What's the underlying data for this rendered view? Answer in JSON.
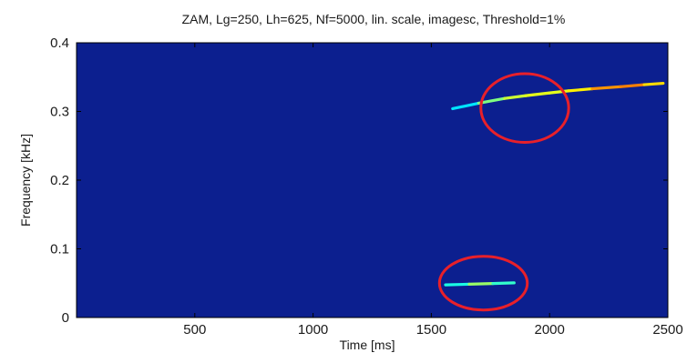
{
  "chart_data": {
    "type": "heatmap",
    "title": "ZAM, Lg=250, Lh=625, Nf=5000, lin. scale, imagesc, Threshold=1%",
    "xlabel": "Time [ms]",
    "ylabel": "Frequency [kHz]",
    "xlim": [
      0,
      2500
    ],
    "ylim": [
      0,
      0.4
    ],
    "xticks": [
      500,
      1000,
      1500,
      2000,
      2500
    ],
    "xtick_labels": [
      "500",
      "1000",
      "1500",
      "2000",
      "2500"
    ],
    "yticks": [
      0,
      0.1,
      0.2,
      0.3,
      0.4
    ],
    "ytick_labels": [
      "0",
      "0.1",
      "0.2",
      "0.3",
      "0.4"
    ],
    "background_color": "#0c1f8f",
    "colormap": "jet",
    "ridges": [
      {
        "points": [
          {
            "t": 1590,
            "f": 0.304,
            "v": 0.25
          },
          {
            "t": 1700,
            "f": 0.312,
            "v": 0.45
          },
          {
            "t": 1810,
            "f": 0.319,
            "v": 0.55
          },
          {
            "t": 1900,
            "f": 0.323,
            "v": 0.6
          },
          {
            "t": 2000,
            "f": 0.327,
            "v": 0.6
          },
          {
            "t": 2080,
            "f": 0.33,
            "v": 0.6
          },
          {
            "t": 2180,
            "f": 0.333,
            "v": 0.68
          },
          {
            "t": 2300,
            "f": 0.336,
            "v": 0.78
          },
          {
            "t": 2400,
            "f": 0.339,
            "v": 0.72
          },
          {
            "t": 2480,
            "f": 0.341,
            "v": 0.6
          }
        ]
      },
      {
        "points": [
          {
            "t": 1560,
            "f": 0.0475,
            "v": 0.3
          },
          {
            "t": 1660,
            "f": 0.0485,
            "v": 0.5
          },
          {
            "t": 1760,
            "f": 0.0495,
            "v": 0.55
          },
          {
            "t": 1850,
            "f": 0.0505,
            "v": 0.3
          }
        ]
      }
    ],
    "annotations": [
      {
        "type": "ellipse",
        "cx": 1895,
        "cy": 0.305,
        "rx": 390,
        "ry": 0.05,
        "color": "#e8202a"
      },
      {
        "type": "ellipse",
        "cx": 1720,
        "cy": 0.05,
        "rx": 390,
        "ry": 0.039,
        "color": "#e8202a"
      }
    ]
  }
}
